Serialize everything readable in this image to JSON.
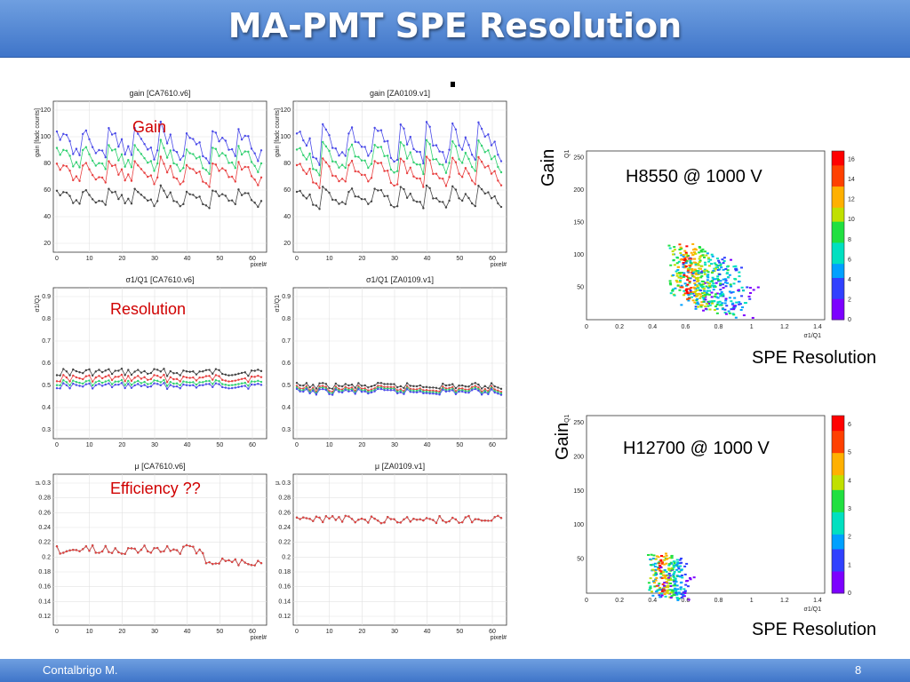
{
  "slide": {
    "title": "MA-PMT SPE Resolution",
    "footer_author": "Contalbrigo M.",
    "page_number": "8"
  },
  "annotations": {
    "gain": "Gain",
    "resolution": "Resolution",
    "efficiency": "Efficiency ??",
    "gain_axis_1": "Gain",
    "gain_axis_2": "Gain",
    "setting_1": "H8550 @ 1000 V",
    "setting_2": "H12700 @ 1000 V",
    "spe_label_1": "SPE Resolution",
    "spe_label_2": "SPE Resolution"
  },
  "panels": [
    {
      "title": "gain [CA7610.v6]",
      "ylabel": "gain [fadc counts]",
      "xlabel": "pixel#",
      "yticks": [
        "20",
        "40",
        "60",
        "80",
        "100",
        "120"
      ],
      "xticks": [
        "0",
        "10",
        "20",
        "30",
        "40",
        "50",
        "60"
      ]
    },
    {
      "title": "gain [ZA0109.v1]",
      "ylabel": "gain [fadc counts]",
      "xlabel": "pixel#",
      "yticks": [
        "20",
        "40",
        "60",
        "80",
        "100",
        "120"
      ],
      "xticks": [
        "0",
        "10",
        "20",
        "30",
        "40",
        "50",
        "60"
      ]
    },
    {
      "title": "σ1/Q1 [CA7610.v6]",
      "ylabel": "σ1/Q1",
      "xlabel": "",
      "yticks": [
        "0.3",
        "0.4",
        "0.5",
        "0.6",
        "0.7",
        "0.8",
        "0.9"
      ],
      "xticks": [
        "0",
        "10",
        "20",
        "30",
        "40",
        "50",
        "60"
      ]
    },
    {
      "title": "σ1/Q1 [ZA0109.v1]",
      "ylabel": "σ1/Q1",
      "xlabel": "",
      "yticks": [
        "0.3",
        "0.4",
        "0.5",
        "0.6",
        "0.7",
        "0.8",
        "0.9"
      ],
      "xticks": [
        "0",
        "10",
        "20",
        "30",
        "40",
        "50",
        "60"
      ]
    },
    {
      "title": "μ [CA7610.v6]",
      "ylabel": "μ",
      "xlabel": "pixel#",
      "yticks": [
        "0.12",
        "0.14",
        "0.16",
        "0.18",
        "0.2",
        "0.22",
        "0.24",
        "0.26",
        "0.28",
        "0.3"
      ],
      "xticks": [
        "0",
        "10",
        "20",
        "30",
        "40",
        "50",
        "60"
      ]
    },
    {
      "title": "μ [ZA0109.v1]",
      "ylabel": "μ",
      "xlabel": "pixel#",
      "yticks": [
        "0.12",
        "0.14",
        "0.16",
        "0.18",
        "0.2",
        "0.22",
        "0.24",
        "0.26",
        "0.28",
        "0.3"
      ],
      "xticks": [
        "0",
        "10",
        "20",
        "30",
        "40",
        "50",
        "60"
      ]
    }
  ],
  "heatmaps": [
    {
      "ylabel": "Q1",
      "xlabel": "σ1/Q1",
      "xticks": [
        "0",
        "0.2",
        "0.4",
        "0.6",
        "0.8",
        "1",
        "1.2",
        "1.4"
      ],
      "yticks": [
        "50",
        "100",
        "150",
        "200",
        "250"
      ],
      "colorbar_ticks": [
        "0",
        "2",
        "4",
        "6",
        "8",
        "10",
        "12",
        "14",
        "16"
      ]
    },
    {
      "ylabel": "Q1",
      "xlabel": "σ1/Q1",
      "xticks": [
        "0",
        "0.2",
        "0.4",
        "0.6",
        "0.8",
        "1",
        "1.2",
        "1.4"
      ],
      "yticks": [
        "50",
        "100",
        "150",
        "200",
        "250"
      ],
      "colorbar_ticks": [
        "0",
        "1",
        "2",
        "3",
        "4",
        "5",
        "6"
      ]
    }
  ],
  "colors": {
    "series_blue": "#4a4ae8",
    "series_green": "#30d070",
    "series_red": "#e84040",
    "series_black": "#444444",
    "annotation_red": "#d00000",
    "title_bar": "#4f86d6"
  }
}
